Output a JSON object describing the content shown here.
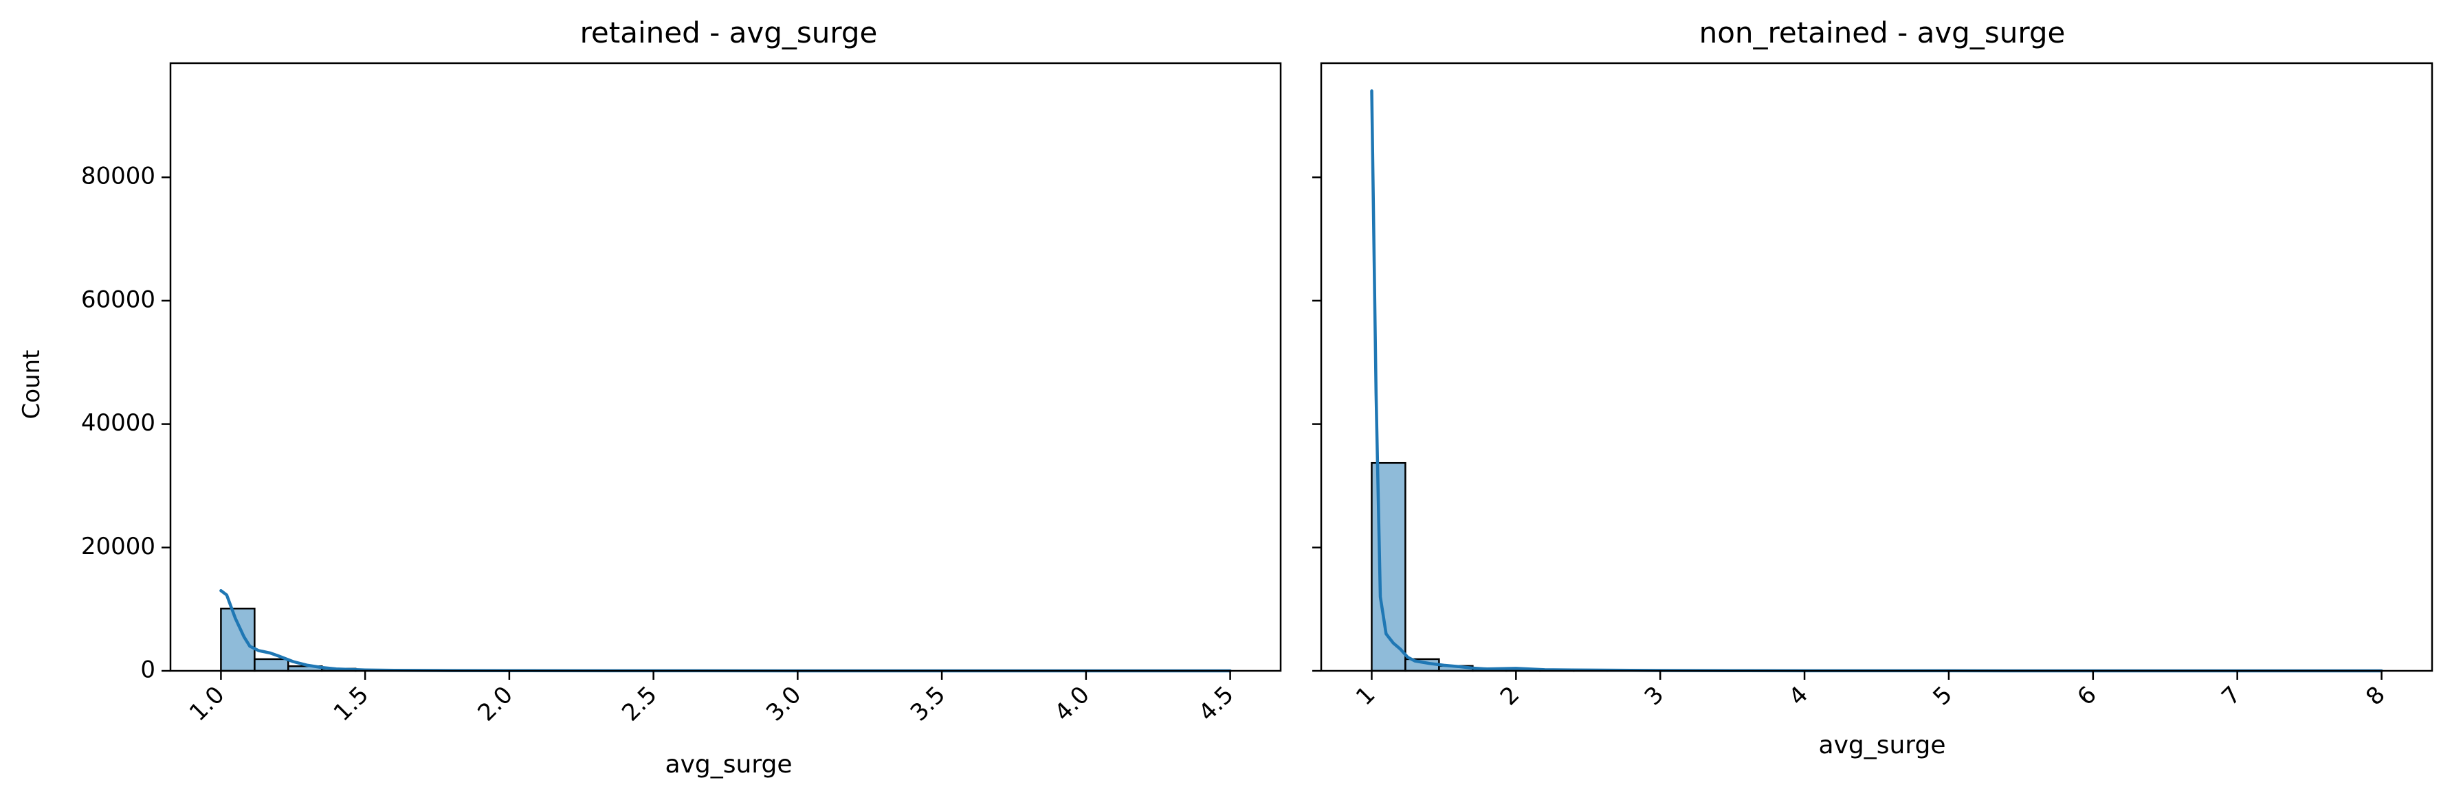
{
  "figure": {
    "shared_ylabel": "Count"
  },
  "colors": {
    "bar_fill": "#1f77b4",
    "bar_edge": "#000000",
    "kde_line": "#1f77b4"
  },
  "chart_data": [
    {
      "type": "bar",
      "subtype": "histogram_with_kde",
      "title": "retained - avg_surge",
      "xlabel": "avg_surge",
      "ylabel": "Count",
      "xlim": [
        0.825,
        4.675
      ],
      "ylim": [
        0,
        98500
      ],
      "xticks": [
        1.0,
        1.5,
        2.0,
        2.5,
        3.0,
        3.5,
        4.0,
        4.5
      ],
      "xtick_labels": [
        "1.0",
        "1.5",
        "2.0",
        "2.5",
        "3.0",
        "3.5",
        "4.0",
        "4.5"
      ],
      "xtick_rotation": 45,
      "yticks": [
        0,
        20000,
        40000,
        60000,
        80000
      ],
      "ytick_labels": [
        "0",
        "20000",
        "40000",
        "60000",
        "80000"
      ],
      "bin_edges": [
        1.0,
        1.1167,
        1.2333,
        1.35,
        1.4667,
        1.5833,
        1.7,
        1.8167,
        1.9333,
        2.05,
        2.1667,
        2.2833,
        2.4,
        2.5167,
        2.6333,
        2.75,
        2.8667,
        2.9833,
        3.1,
        3.2167,
        3.3333,
        3.45,
        3.5667,
        3.6833,
        3.8,
        3.9167,
        4.0333,
        4.15,
        4.2667,
        4.3833,
        4.5
      ],
      "counts": [
        10100,
        1900,
        750,
        350,
        150,
        90,
        60,
        40,
        30,
        20,
        15,
        12,
        10,
        8,
        6,
        5,
        4,
        3,
        3,
        2,
        2,
        2,
        1,
        1,
        1,
        1,
        1,
        1,
        1,
        1
      ],
      "kde": {
        "x": [
          1.0,
          1.02,
          1.05,
          1.08,
          1.1,
          1.13,
          1.17,
          1.2,
          1.25,
          1.3,
          1.35,
          1.4,
          1.5,
          1.6,
          1.8,
          2.0,
          2.5,
          3.0,
          3.5,
          4.0,
          4.5
        ],
        "y": [
          13000,
          12300,
          8500,
          5500,
          4000,
          3300,
          2900,
          2400,
          1500,
          900,
          550,
          300,
          150,
          90,
          40,
          20,
          6,
          3,
          2,
          1,
          1
        ]
      }
    },
    {
      "type": "bar",
      "subtype": "histogram_with_kde",
      "title": "non_retained - avg_surge",
      "xlabel": "avg_surge",
      "ylabel": "",
      "xlim": [
        0.65,
        8.35
      ],
      "ylim": [
        0,
        98500
      ],
      "xticks": [
        1,
        2,
        3,
        4,
        5,
        6,
        7,
        8
      ],
      "xtick_labels": [
        "1",
        "2",
        "3",
        "4",
        "5",
        "6",
        "7",
        "8"
      ],
      "xtick_rotation": 45,
      "yticks": [
        0,
        20000,
        40000,
        60000,
        80000
      ],
      "ytick_labels": [
        "",
        "",
        "",
        "",
        ""
      ],
      "bin_edges": [
        1.0,
        1.2333,
        1.4667,
        1.7,
        1.9333,
        2.1667,
        2.4,
        2.6333,
        2.8667,
        3.1,
        3.3333,
        3.5667,
        3.8,
        4.0333,
        4.2667,
        4.5,
        4.7333,
        4.9667,
        5.2,
        5.4333,
        5.6667,
        5.9,
        6.1333,
        6.3667,
        6.6,
        6.8333,
        7.0667,
        7.3,
        7.5333,
        7.7667,
        8.0
      ],
      "counts": [
        33700,
        1900,
        800,
        400,
        300,
        150,
        120,
        100,
        80,
        60,
        40,
        30,
        25,
        20,
        15,
        12,
        10,
        8,
        6,
        5,
        4,
        3,
        3,
        2,
        2,
        2,
        1,
        1,
        1,
        1
      ],
      "kde": {
        "x": [
          1.0,
          1.03,
          1.06,
          1.1,
          1.15,
          1.2,
          1.25,
          1.3,
          1.4,
          1.5,
          1.6,
          1.7,
          1.8,
          2.0,
          2.2,
          2.5,
          3.0,
          3.5,
          4.0,
          5.0,
          6.0,
          7.0,
          8.0
        ],
        "y": [
          94000,
          45000,
          12000,
          6000,
          4500,
          3500,
          2200,
          1600,
          1200,
          900,
          700,
          450,
          300,
          400,
          180,
          120,
          60,
          30,
          15,
          6,
          3,
          2,
          1
        ]
      }
    }
  ]
}
